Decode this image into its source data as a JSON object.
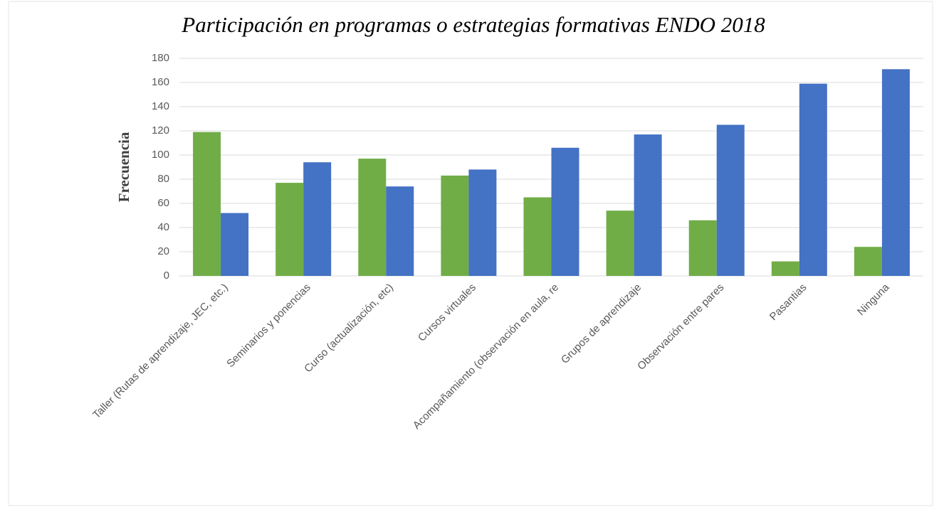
{
  "chart_data": {
    "type": "bar",
    "title": "Participación en programas o estrategias formativas ENDO 2018",
    "y_label": "Frecuencia",
    "categories": [
      "Taller (Rutas de aprendizaje, JEC, etc.)",
      "Seminarios y ponencias",
      "Curso (actualización, etc)",
      "Cursos virtuales",
      "Acompañamiento (observación en aula, re",
      "Grupos de aprendizaje",
      "Observación entre pares",
      "Pasantias",
      "Ninguna"
    ],
    "series": [
      {
        "color": "#70ad47",
        "values": [
          119,
          77,
          97,
          83,
          65,
          54,
          46,
          12,
          24
        ]
      },
      {
        "color": "#4472c4",
        "values": [
          52,
          94,
          74,
          88,
          106,
          117,
          125,
          159,
          171
        ]
      }
    ],
    "ylim": [
      0,
      180
    ],
    "yticks": [
      0,
      20,
      40,
      60,
      80,
      100,
      120,
      140,
      160,
      180
    ],
    "grid": true
  }
}
